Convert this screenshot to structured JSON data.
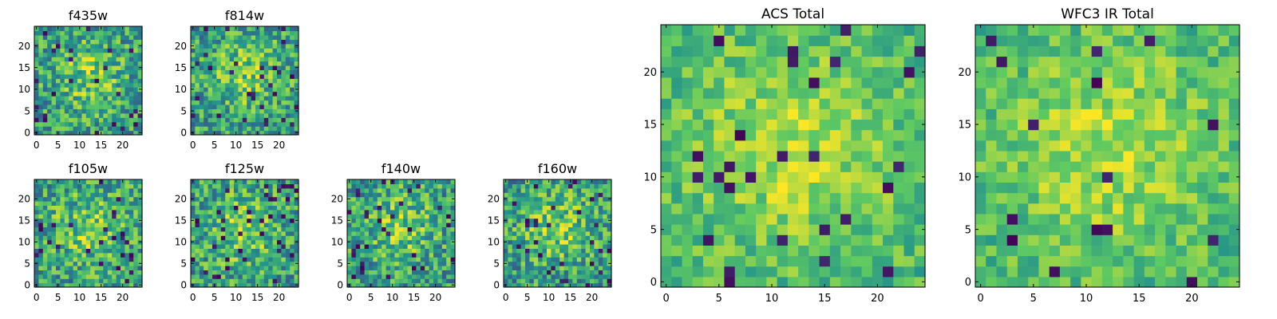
{
  "chart_data": [
    {
      "type": "heatmap",
      "title": "f435w",
      "grid_size": 25,
      "xticks": [
        0,
        5,
        10,
        15,
        20
      ],
      "yticks": [
        0,
        5,
        10,
        15,
        20
      ],
      "xlim": [
        -0.5,
        24.5
      ],
      "ylim": [
        -0.5,
        24.5
      ],
      "colormap": "viridis"
    },
    {
      "type": "heatmap",
      "title": "f814w",
      "grid_size": 25,
      "xticks": [
        0,
        5,
        10,
        15,
        20
      ],
      "yticks": [
        0,
        5,
        10,
        15,
        20
      ],
      "xlim": [
        -0.5,
        24.5
      ],
      "ylim": [
        -0.5,
        24.5
      ],
      "colormap": "viridis"
    },
    {
      "type": "heatmap",
      "title": "f105w",
      "grid_size": 25,
      "xticks": [
        0,
        5,
        10,
        15,
        20
      ],
      "yticks": [
        0,
        5,
        10,
        15,
        20
      ],
      "xlim": [
        -0.5,
        24.5
      ],
      "ylim": [
        -0.5,
        24.5
      ],
      "colormap": "viridis"
    },
    {
      "type": "heatmap",
      "title": "f125w",
      "grid_size": 25,
      "xticks": [
        0,
        5,
        10,
        15,
        20
      ],
      "yticks": [
        0,
        5,
        10,
        15,
        20
      ],
      "xlim": [
        -0.5,
        24.5
      ],
      "ylim": [
        -0.5,
        24.5
      ],
      "colormap": "viridis"
    },
    {
      "type": "heatmap",
      "title": "f140w",
      "grid_size": 25,
      "xticks": [
        0,
        5,
        10,
        15,
        20
      ],
      "yticks": [
        0,
        5,
        10,
        15,
        20
      ],
      "xlim": [
        -0.5,
        24.5
      ],
      "ylim": [
        -0.5,
        24.5
      ],
      "colormap": "viridis"
    },
    {
      "type": "heatmap",
      "title": "f160w",
      "grid_size": 25,
      "xticks": [
        0,
        5,
        10,
        15,
        20
      ],
      "yticks": [
        0,
        5,
        10,
        15,
        20
      ],
      "xlim": [
        -0.5,
        24.5
      ],
      "ylim": [
        -0.5,
        24.5
      ],
      "colormap": "viridis"
    },
    {
      "type": "heatmap",
      "title": "ACS Total",
      "grid_size": 25,
      "xticks": [
        0,
        5,
        10,
        15,
        20
      ],
      "yticks": [
        0,
        5,
        10,
        15,
        20
      ],
      "xlim": [
        -0.5,
        24.5
      ],
      "ylim": [
        -0.5,
        24.5
      ],
      "colormap": "viridis"
    },
    {
      "type": "heatmap",
      "title": "WFC3 IR Total",
      "grid_size": 25,
      "xticks": [
        0,
        5,
        10,
        15,
        20
      ],
      "yticks": [
        0,
        5,
        10,
        15,
        20
      ],
      "xlim": [
        -0.5,
        24.5
      ],
      "ylim": [
        -0.5,
        24.5
      ],
      "colormap": "viridis"
    }
  ],
  "colors": {
    "cmap_low": "#440154",
    "cmap_mid_low": "#31688e",
    "cmap_mid": "#35b779",
    "cmap_high": "#fde725"
  }
}
